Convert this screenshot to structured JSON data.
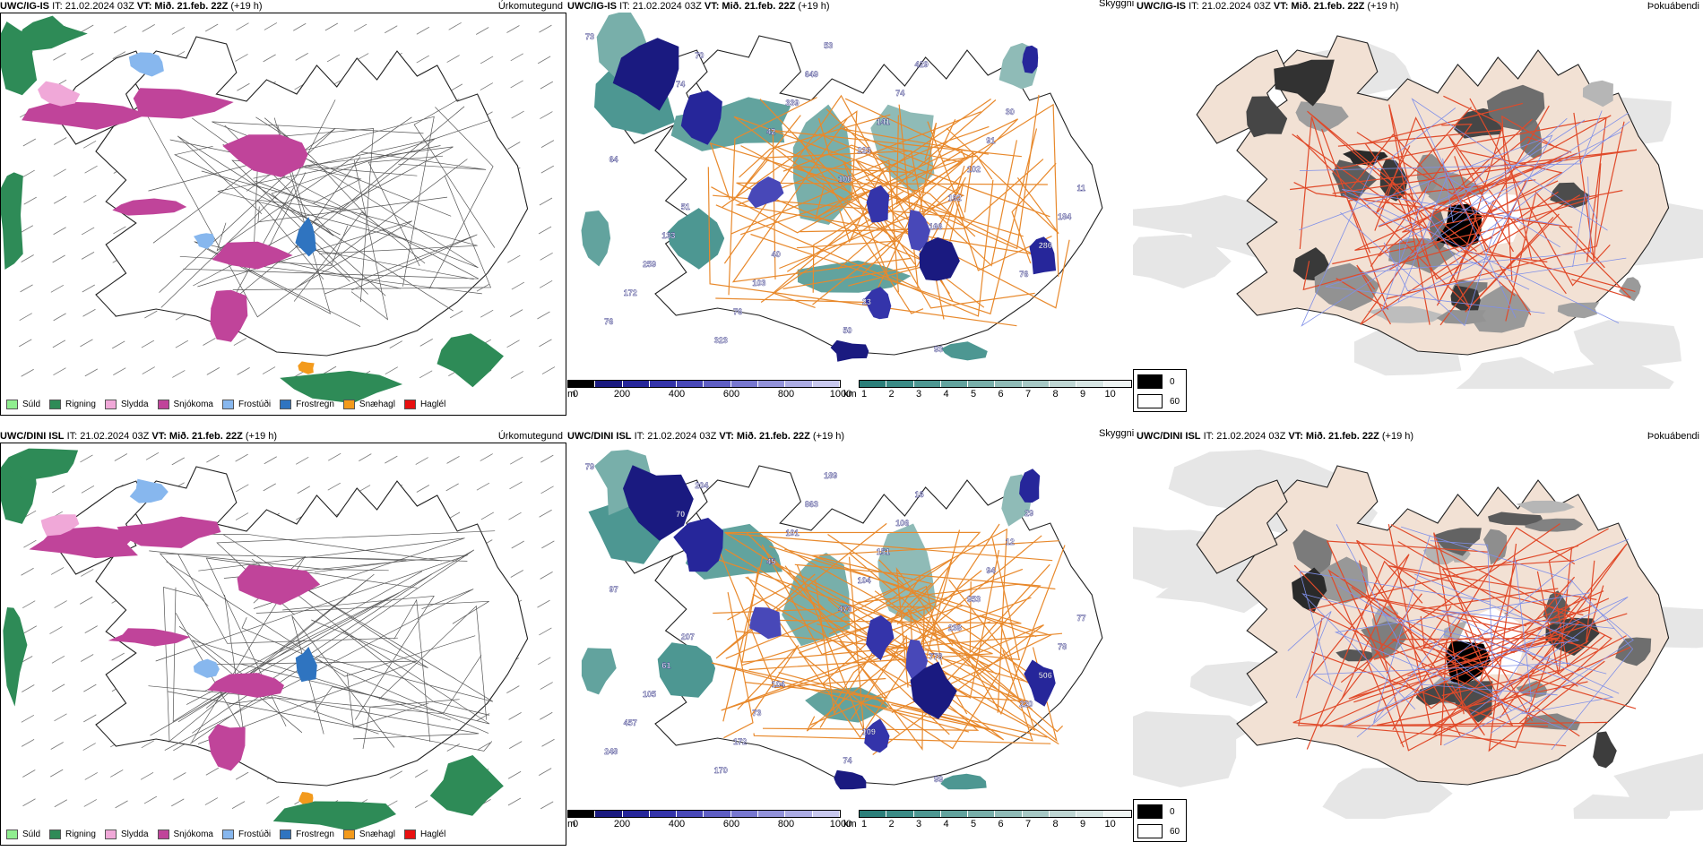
{
  "rows": [
    {
      "model": "UWC/IG-IS",
      "it_label": "IT:",
      "it_value": "21.02.2024 03Z",
      "vt_label": "VT:",
      "vt_value": "Mið. 21.feb. 22Z",
      "lead": "(+19 h)",
      "panel1_title": "Úrkomutegund",
      "panel3_left_title": "Skyggni",
      "panel3_title": "Þokuábendi",
      "cloud_labels": [
        "73",
        "74",
        "42",
        "100",
        "166",
        "76",
        "76",
        "70",
        "339",
        "223",
        "192",
        "286",
        "172",
        "323",
        "649",
        "141",
        "102",
        "184",
        "259",
        "76",
        "53",
        "74",
        "91",
        "11",
        "133",
        "103",
        "50",
        "429",
        "30",
        "64",
        "51",
        "40",
        "23",
        "93"
      ]
    },
    {
      "model": "UWC/DINI ISL",
      "it_label": "IT:",
      "it_value": "21.02.2024 03Z",
      "vt_label": "VT:",
      "vt_value": "Mið. 21.feb. 22Z",
      "lead": "(+19 h)",
      "panel1_title": "Úrkomutegund",
      "panel3_left_title": "Skyggni",
      "panel3_title": "Þokuábendi",
      "cloud_labels": [
        "79",
        "70",
        "45",
        "473",
        "778",
        "220",
        "248",
        "204",
        "101",
        "104",
        "238",
        "506",
        "457",
        "170",
        "863",
        "151",
        "953",
        "78",
        "105",
        "172",
        "189",
        "106",
        "94",
        "77",
        "61",
        "73",
        "74",
        "16",
        "12",
        "97",
        "207",
        "104",
        "109",
        "99",
        "29"
      ]
    }
  ],
  "precip_legend": [
    {
      "label": "Súld",
      "color": "#90ee90"
    },
    {
      "label": "Rigning",
      "color": "#2e8b57"
    },
    {
      "label": "Slydda",
      "color": "#f0a8d8"
    },
    {
      "label": "Snjókoma",
      "color": "#c0449a"
    },
    {
      "label": "Frostúði",
      "color": "#87b7ee"
    },
    {
      "label": "Frostregn",
      "color": "#2f74c0"
    },
    {
      "label": "Snæhagl",
      "color": "#f39a1c"
    },
    {
      "label": "Haglél",
      "color": "#e81010"
    }
  ],
  "cloudbase_bar": {
    "unit": "m",
    "ticks": [
      "0",
      "200",
      "400",
      "600",
      "800",
      "1000"
    ],
    "colors": [
      "#000000",
      "#1a1a80",
      "#26269a",
      "#3434aa",
      "#4848b8",
      "#5e5ec4",
      "#7878d0",
      "#9292da",
      "#acacE4",
      "#c8c8ee"
    ]
  },
  "vis_bar": {
    "unit": "km",
    "ticks": [
      "1",
      "2",
      "3",
      "4",
      "5",
      "6",
      "7",
      "8",
      "9",
      "10"
    ],
    "colors": [
      "#2b7f7a",
      "#3a8b86",
      "#4d9792",
      "#62a39e",
      "#78afaa",
      "#8fbbb7",
      "#a6c8c5",
      "#bed6d3",
      "#d6e5e3",
      "#eef4f3"
    ]
  },
  "fog_key": {
    "values": [
      "0",
      "60"
    ]
  }
}
